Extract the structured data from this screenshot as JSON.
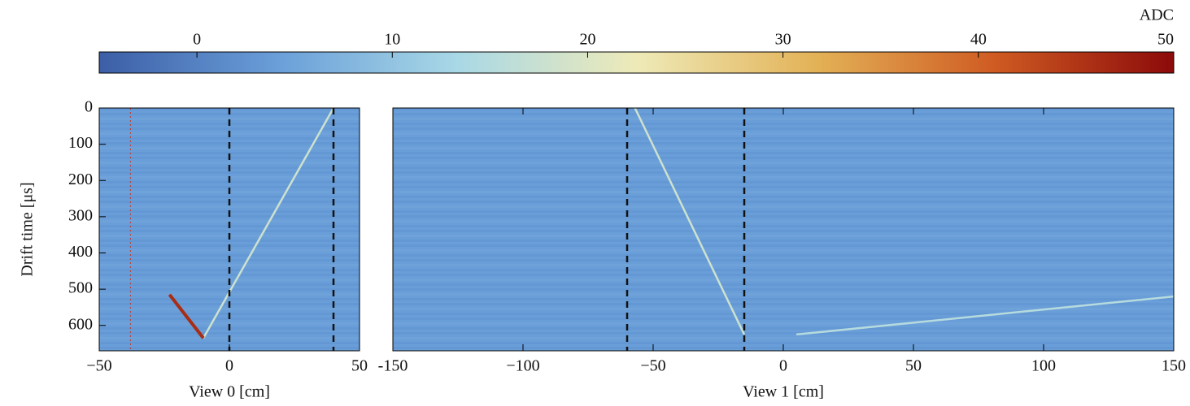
{
  "chart_data": [
    {
      "type": "colorbar",
      "title": "ADC",
      "clim": [
        -5,
        50
      ],
      "ticks": [
        0,
        10,
        20,
        30,
        40,
        50
      ],
      "colormap": [
        "#3c5ea6",
        "#6a9fd9",
        "#a9d8e6",
        "#eeeab8",
        "#e3b257",
        "#cf5b22",
        "#8c0a0a"
      ]
    },
    {
      "type": "heatmap",
      "xlabel": "View 0 [cm]",
      "ylabel": "Drift time [μs]",
      "xlim": [
        -50,
        50
      ],
      "xticks": [
        {
          "value": -50,
          "label": "−50"
        },
        0,
        50
      ],
      "ylim": [
        0,
        670
      ],
      "y_inverted": true,
      "yticks": [
        0,
        100,
        200,
        300,
        400,
        500,
        600
      ],
      "background": 4,
      "dashed_lines": [
        0,
        40
      ],
      "dotted_lines": [
        -38
      ],
      "tracks": [
        {
          "x": [
            -10,
            40
          ],
          "y": [
            635,
            0
          ],
          "adc": 18
        },
        {
          "x": [
            -23,
            -10
          ],
          "y": [
            515,
            635
          ],
          "adc": 46
        }
      ]
    },
    {
      "type": "heatmap",
      "xlabel": "View 1 [cm]",
      "xlim": [
        -150,
        150
      ],
      "xticks": [
        {
          "value": -150,
          "label": "-150"
        },
        {
          "value": -100,
          "label": "−100"
        },
        {
          "value": -50,
          "label": "−50"
        },
        0,
        50,
        100,
        150
      ],
      "ylim": [
        0,
        670
      ],
      "y_inverted": true,
      "background": 4,
      "dashed_lines": [
        -60,
        -15
      ],
      "tracks": [
        {
          "x": [
            -57,
            -15
          ],
          "y": [
            0,
            625
          ],
          "adc": 18
        },
        {
          "x": [
            5,
            150
          ],
          "y": [
            625,
            520
          ],
          "adc": 15
        }
      ]
    }
  ]
}
